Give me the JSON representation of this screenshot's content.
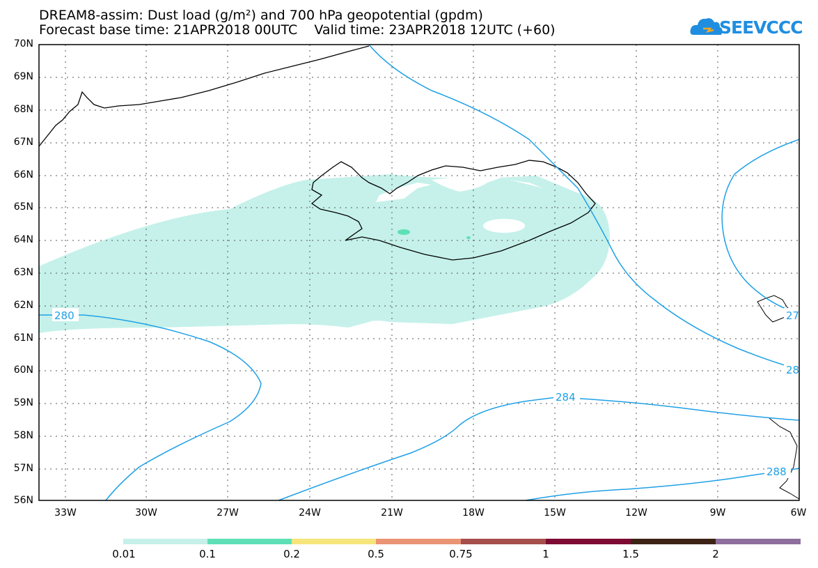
{
  "header": {
    "title_line1": "DREAM8-assim: Dust load (g/m²) and 700 hPa geopotential (gpdm)",
    "title_line2": "Forecast base time: 21APR2018 00UTC    Valid time: 23APR2018 12UTC (+60)",
    "logo_text": "SEEVCCC"
  },
  "map": {
    "lat_labels": [
      "70N",
      "69N",
      "68N",
      "67N",
      "66N",
      "65N",
      "64N",
      "63N",
      "62N",
      "61N",
      "60N",
      "59N",
      "58N",
      "57N",
      "56N"
    ],
    "lon_labels": [
      "33W",
      "30W",
      "27W",
      "24W",
      "21W",
      "18W",
      "15W",
      "12W",
      "9W",
      "6W"
    ],
    "contour_labels": [
      "280",
      "284",
      "288",
      "27",
      "28"
    ],
    "colors": {
      "contour": "#1ea0e6",
      "dust_light": "#c5f1ea",
      "dust_mid": "#5ee0b6"
    }
  },
  "colorbar": {
    "labels": [
      "0.01",
      "0.1",
      "0.2",
      "0.5",
      "0.75",
      "1",
      "1.5",
      "2"
    ],
    "colors": [
      "#c5f1ea",
      "#5ee0b6",
      "#f6e57b",
      "#eb9473",
      "#a64e4b",
      "#7c0a32",
      "#3d2316",
      "#8e6e9c"
    ]
  }
}
